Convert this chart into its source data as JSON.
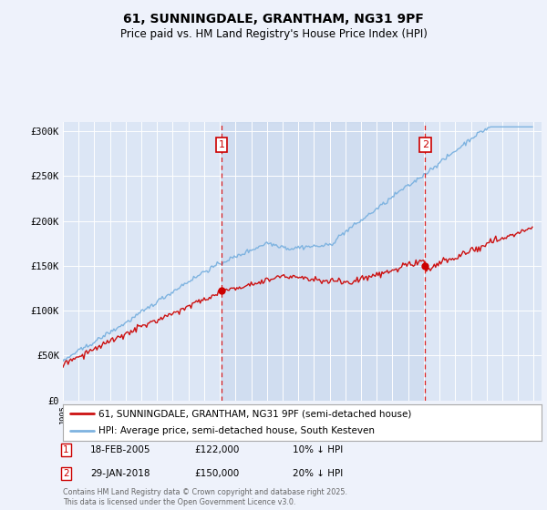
{
  "title": "61, SUNNINGDALE, GRANTHAM, NG31 9PF",
  "subtitle": "Price paid vs. HM Land Registry's House Price Index (HPI)",
  "background_color": "#eef2fb",
  "plot_bg_color": "#dce6f5",
  "legend_line1": "61, SUNNINGDALE, GRANTHAM, NG31 9PF (semi-detached house)",
  "legend_line2": "HPI: Average price, semi-detached house, South Kesteven",
  "footnote": "Contains HM Land Registry data © Crown copyright and database right 2025.\nThis data is licensed under the Open Government Licence v3.0.",
  "marker1_date": "18-FEB-2005",
  "marker1_price": 122000,
  "marker1_label": "10% ↓ HPI",
  "marker2_date": "29-JAN-2018",
  "marker2_price": 150000,
  "marker2_label": "20% ↓ HPI",
  "hpi_color": "#7eb3e0",
  "price_color": "#cc1111",
  "marker_color": "#cc0000",
  "ylim": [
    0,
    310000
  ],
  "yticks": [
    0,
    50000,
    100000,
    150000,
    200000,
    250000,
    300000
  ],
  "start_year": 1995,
  "end_year": 2025,
  "marker1_x": 2005.12,
  "marker2_x": 2018.08
}
